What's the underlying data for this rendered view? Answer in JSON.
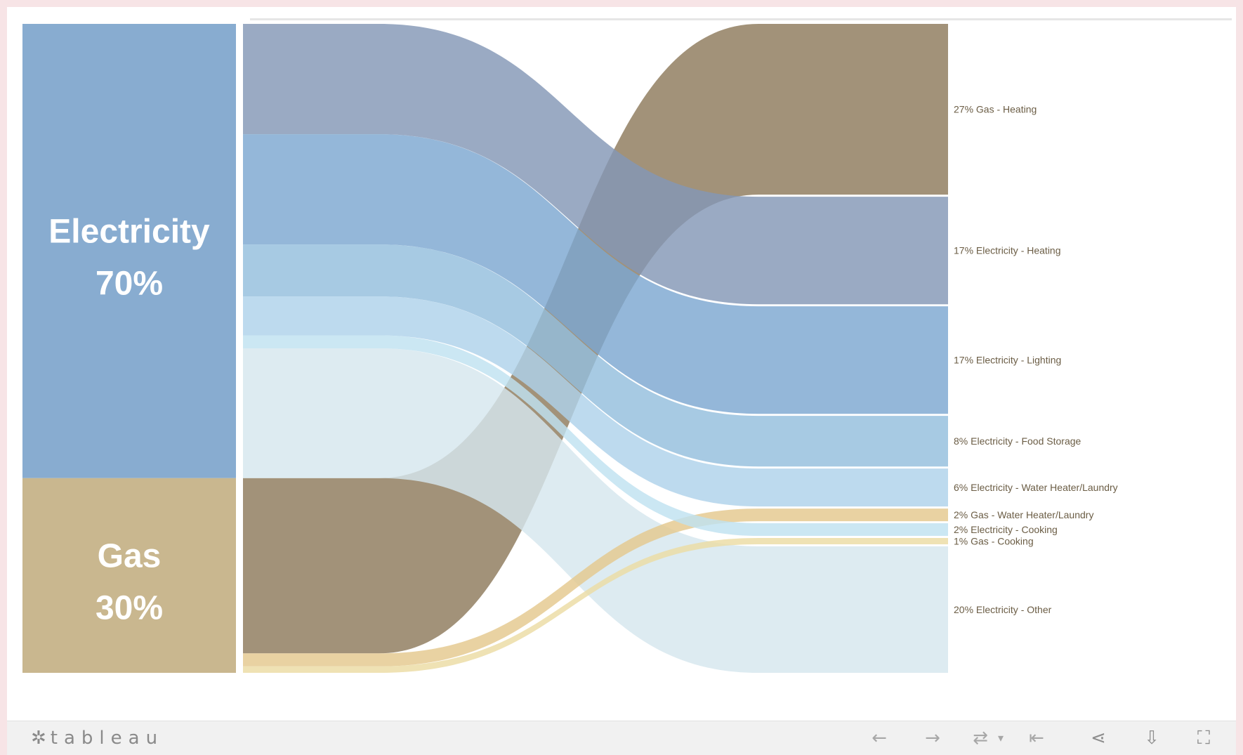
{
  "chart_data": {
    "type": "sankey",
    "sources": [
      {
        "name": "Electricity",
        "percent_label": "70%",
        "value": 70,
        "color": "#88acd0"
      },
      {
        "name": "Gas",
        "percent_label": "30%",
        "value": 30,
        "color": "#c9b78f"
      }
    ],
    "targets": [
      {
        "label": "27% Gas - Heating",
        "source": "Gas",
        "value": 27,
        "color": "#8d7a5c"
      },
      {
        "label": "17% Electricity - Heating",
        "source": "Electricity",
        "value": 17,
        "color": "#8497b6"
      },
      {
        "label": "17% Electricity - Lighting",
        "source": "Electricity",
        "value": 17,
        "color": "#7da7d1"
      },
      {
        "label": "8% Electricity - Food Storage",
        "source": "Electricity",
        "value": 8,
        "color": "#94bedd"
      },
      {
        "label": "6% Electricity - Water Heater/Laundry",
        "source": "Electricity",
        "value": 6,
        "color": "#aed2ea"
      },
      {
        "label": "2% Gas - Water Heater/Laundry",
        "source": "Gas",
        "value": 2,
        "color": "#e4c88e"
      },
      {
        "label": "2% Electricity - Cooking",
        "source": "Electricity",
        "value": 2,
        "color": "#bfe2f0"
      },
      {
        "label": "1% Gas - Cooking",
        "source": "Gas",
        "value": 1,
        "color": "#ecdca3"
      },
      {
        "label": "20% Electricity - Other",
        "source": "Electricity",
        "value": 20,
        "color": "#d6e7ee"
      }
    ],
    "left_order": [
      "17% Electricity - Heating",
      "17% Electricity - Lighting",
      "8% Electricity - Food Storage",
      "6% Electricity - Water Heater/Laundry",
      "2% Electricity - Cooking",
      "20% Electricity - Other",
      "27% Gas - Heating",
      "2% Gas - Water Heater/Laundry",
      "1% Gas - Cooking"
    ]
  },
  "toolbar": {
    "brand": "tableau",
    "buttons": [
      {
        "id": "undo",
        "icon": "arrow-left-icon",
        "glyph": "←"
      },
      {
        "id": "redo",
        "icon": "arrow-right-icon",
        "glyph": "→"
      },
      {
        "id": "revert",
        "icon": "revert-icon",
        "glyph": "⇄"
      },
      {
        "id": "revert-menu",
        "icon": "dropdown-icon",
        "glyph": "▾"
      },
      {
        "id": "reset",
        "icon": "reset-to-start-icon",
        "glyph": "⇤"
      },
      {
        "id": "share",
        "icon": "share-icon",
        "glyph": "⋖"
      },
      {
        "id": "download",
        "icon": "download-icon",
        "glyph": "⇩"
      },
      {
        "id": "fullscreen",
        "icon": "fullscreen-icon",
        "glyph": "⛶"
      }
    ]
  }
}
